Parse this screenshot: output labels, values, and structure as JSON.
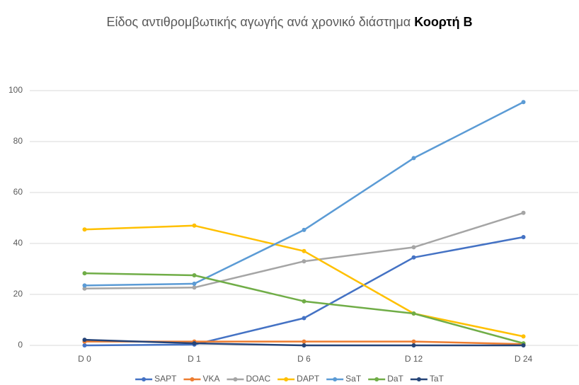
{
  "chart_data": {
    "type": "line",
    "title": "Είδος αντιθρομβωτικής αγωγής ανά χρονικό διάστημα",
    "title_emphasis": "Κοορτή Β",
    "categories": [
      "D 0",
      "D 1",
      "D 6",
      "D 12",
      "D 24"
    ],
    "series": [
      {
        "name": "SAPT",
        "color": "#4472c4",
        "values": [
          0,
          0.3,
          10.7,
          34.5,
          42.5
        ]
      },
      {
        "name": "VKA",
        "color": "#ed7d31",
        "values": [
          1.5,
          1.5,
          1.5,
          1.5,
          0.5
        ]
      },
      {
        "name": "DOAC",
        "color": "#a5a5a5",
        "values": [
          22.3,
          22.7,
          33,
          38.5,
          52
        ]
      },
      {
        "name": "DAPT",
        "color": "#ffc000",
        "values": [
          45.5,
          47,
          37,
          12.5,
          3.5
        ]
      },
      {
        "name": "SaT",
        "color": "#5b9bd5",
        "values": [
          23.5,
          24.2,
          45.3,
          73.5,
          95.5
        ]
      },
      {
        "name": "DaT",
        "color": "#70ad47",
        "values": [
          28.3,
          27.5,
          17.3,
          12.5,
          0.8
        ]
      },
      {
        "name": "TaT",
        "color": "#264478",
        "values": [
          2.2,
          0.8,
          0,
          0,
          0
        ]
      }
    ],
    "ylim": [
      0,
      100
    ],
    "yticks": [
      0,
      20,
      40,
      60,
      80,
      100
    ],
    "grid": true,
    "legend": "bottom"
  }
}
